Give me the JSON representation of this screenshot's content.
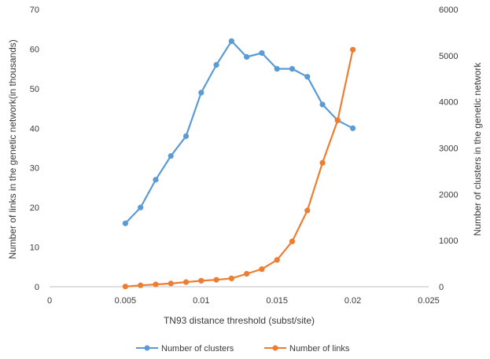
{
  "chart_data": {
    "type": "line",
    "title": "",
    "xlabel": "TN93 distance threshold (subst/site)",
    "ylabel_left": "Number of links in the genetic network(in thousands)",
    "ylabel_right": "Number of clusters in the genetic network",
    "xlim": [
      0,
      0.025
    ],
    "x_ticks": [
      "0",
      "0.005",
      "0.01",
      "0.015",
      "0.02",
      "0.025"
    ],
    "ylim_left": [
      0,
      70
    ],
    "y_ticks_left": [
      "0",
      "10",
      "20",
      "30",
      "40",
      "50",
      "60",
      "70"
    ],
    "ylim_right": [
      0,
      6000
    ],
    "y_ticks_right": [
      "0",
      "1000",
      "2000",
      "3000",
      "4000",
      "5000",
      "6000"
    ],
    "grid": false,
    "legend_position": "bottom",
    "series": [
      {
        "name": "Number of clusters",
        "axis": "left",
        "color": "#5b9bd5",
        "x": [
          0.005,
          0.006,
          0.007,
          0.008,
          0.009,
          0.01,
          0.011,
          0.012,
          0.013,
          0.014,
          0.015,
          0.016,
          0.017,
          0.018,
          0.019,
          0.02
        ],
        "values": [
          16,
          20,
          27,
          33,
          38,
          49,
          56,
          62,
          58,
          59,
          55,
          55,
          53,
          46,
          42,
          40
        ]
      },
      {
        "name": "Number of links",
        "axis": "right",
        "color": "#ed7d31",
        "x": [
          0.005,
          0.006,
          0.007,
          0.008,
          0.009,
          0.01,
          0.011,
          0.012,
          0.013,
          0.014,
          0.015,
          0.016,
          0.017,
          0.018,
          0.019,
          0.02
        ],
        "values": [
          5,
          30,
          50,
          70,
          100,
          130,
          150,
          180,
          280,
          380,
          580,
          980,
          1650,
          2680,
          3600,
          5130
        ]
      }
    ]
  }
}
